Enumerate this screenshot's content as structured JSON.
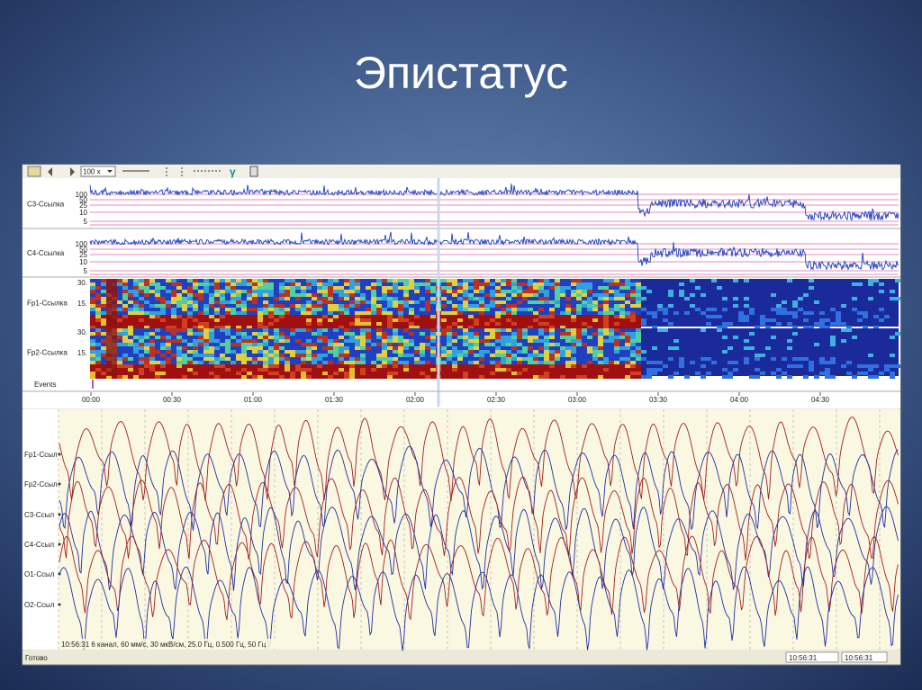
{
  "title": "Эпистатус",
  "toolbar": {
    "zoom": "100 x"
  },
  "trend": {
    "channels": [
      {
        "label": "C3-Ссылка",
        "scale": [
          "100",
          "50",
          "25",
          "10",
          "5"
        ]
      },
      {
        "label": "C4-Ссылка",
        "scale": [
          "100",
          "50",
          "25",
          "10",
          "5"
        ]
      }
    ],
    "spectra": [
      {
        "label": "Fp1-Ссылка",
        "scale": [
          "30.",
          "15."
        ]
      },
      {
        "label": "Fp2-Ссылка",
        "scale": [
          "30.",
          "15."
        ]
      }
    ],
    "events": "Events",
    "time_labels": [
      "00:00",
      "00:30",
      "01:00",
      "01:30",
      "02:00",
      "02:30",
      "03:00",
      "03:30",
      "04:00",
      "04:30"
    ]
  },
  "eeg": {
    "channels": [
      "Fp1-Ссыл",
      "Fp2-Ссыл",
      "C3-Ссыл",
      "C4-Ссыл",
      "O1-Ссыл",
      "O2-Ссыл"
    ],
    "info": "10:56:31 6 канал, 60 мм/с, 30 мкВ/см, 25.0 Гц, 0.500 Гц, 50 Гц"
  },
  "status": {
    "text": "Готово",
    "time": "10:56:31",
    "time2": "10:56:31"
  }
}
